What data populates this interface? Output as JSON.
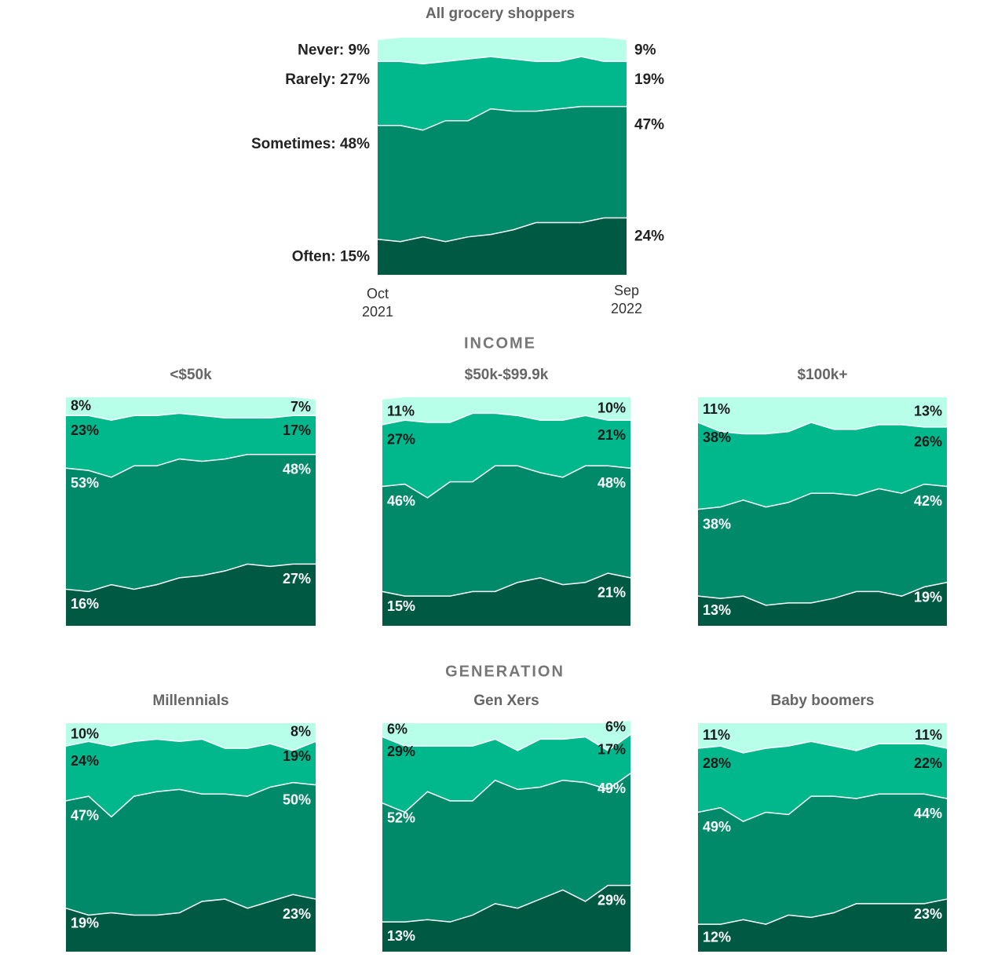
{
  "headings": [
    "INCOME",
    "GENERATION"
  ],
  "chart_data": [
    {
      "type": "area",
      "stacked": true,
      "title": "All grocery shoppers",
      "ylim": [
        0,
        100
      ],
      "categories": [
        "Oct 2021",
        null,
        null,
        null,
        null,
        null,
        null,
        null,
        null,
        null,
        null,
        "Sep 2022"
      ],
      "series": [
        {
          "name": "Often",
          "color": "#005a43",
          "values": [
            15,
            14,
            16,
            14,
            16,
            17,
            19,
            22,
            22,
            22,
            24,
            24
          ],
          "value_labels": [
            "Often: 15%",
            null,
            null,
            null,
            null,
            null,
            null,
            null,
            null,
            null,
            null,
            "24%"
          ]
        },
        {
          "name": "Sometimes",
          "color": "#008a69",
          "values": [
            48,
            49,
            45,
            51,
            49,
            53,
            50,
            47,
            48,
            49,
            47,
            47
          ],
          "value_labels": [
            "Sometimes: 48%",
            null,
            null,
            null,
            null,
            null,
            null,
            null,
            null,
            null,
            null,
            "47%"
          ]
        },
        {
          "name": "Rarely",
          "color": "#00b88c",
          "values": [
            27,
            27,
            28,
            25,
            26,
            22,
            22,
            21,
            20,
            21,
            19,
            19
          ],
          "value_labels": [
            "Rarely: 27%",
            null,
            null,
            null,
            null,
            null,
            null,
            null,
            null,
            null,
            null,
            "19%"
          ]
        },
        {
          "name": "Never",
          "color": "#b8ffe9",
          "values": [
            9,
            10,
            11,
            10,
            9,
            8,
            9,
            10,
            10,
            8,
            10,
            9
          ],
          "value_labels": [
            "Never: 9%",
            null,
            null,
            null,
            null,
            null,
            null,
            null,
            null,
            null,
            null,
            "9%"
          ]
        }
      ]
    },
    {
      "type": "area",
      "stacked": true,
      "title": "<$50k",
      "ylim": [
        0,
        100
      ],
      "series": [
        {
          "color": "#005a43",
          "values": [
            16,
            15,
            18,
            16,
            18,
            21,
            22,
            24,
            27,
            26,
            27,
            27
          ],
          "value_labels": [
            "16%",
            null,
            null,
            null,
            null,
            null,
            null,
            null,
            null,
            null,
            null,
            "27%"
          ]
        },
        {
          "color": "#008a69",
          "values": [
            53,
            53,
            47,
            54,
            52,
            52,
            50,
            49,
            48,
            49,
            48,
            48
          ],
          "value_labels": [
            "53%",
            null,
            null,
            null,
            null,
            null,
            null,
            null,
            null,
            null,
            null,
            "48%"
          ]
        },
        {
          "color": "#00b88c",
          "values": [
            23,
            24,
            25,
            22,
            22,
            20,
            20,
            18,
            16,
            16,
            17,
            17
          ],
          "value_labels": [
            "23%",
            null,
            null,
            null,
            null,
            null,
            null,
            null,
            null,
            null,
            null,
            "17%"
          ]
        },
        {
          "color": "#b8ffe9",
          "values": [
            8,
            8,
            10,
            8,
            8,
            7,
            8,
            9,
            9,
            9,
            8,
            7
          ],
          "value_labels": [
            "8%",
            null,
            null,
            null,
            null,
            null,
            null,
            null,
            null,
            null,
            null,
            "7%"
          ]
        }
      ]
    },
    {
      "type": "area",
      "stacked": true,
      "title": "$50k-$99.9k",
      "ylim": [
        0,
        100
      ],
      "series": [
        {
          "color": "#005a43",
          "values": [
            15,
            13,
            13,
            13,
            15,
            15,
            19,
            21,
            18,
            19,
            23,
            21
          ],
          "value_labels": [
            "15%",
            null,
            null,
            null,
            null,
            null,
            null,
            null,
            null,
            null,
            null,
            "21%"
          ]
        },
        {
          "color": "#008a69",
          "values": [
            46,
            49,
            43,
            50,
            48,
            55,
            51,
            46,
            47,
            51,
            47,
            48
          ],
          "value_labels": [
            "46%",
            null,
            null,
            null,
            null,
            null,
            null,
            null,
            null,
            null,
            null,
            "48%"
          ]
        },
        {
          "color": "#00b88c",
          "values": [
            27,
            28,
            33,
            26,
            30,
            23,
            22,
            23,
            25,
            22,
            20,
            21
          ],
          "value_labels": [
            "27%",
            null,
            null,
            null,
            null,
            null,
            null,
            null,
            null,
            null,
            null,
            "21%"
          ]
        },
        {
          "color": "#b8ffe9",
          "values": [
            11,
            10,
            11,
            11,
            7,
            7,
            8,
            10,
            10,
            8,
            10,
            10
          ],
          "value_labels": [
            "11%",
            null,
            null,
            null,
            null,
            null,
            null,
            null,
            null,
            null,
            null,
            "10%"
          ]
        }
      ]
    },
    {
      "type": "area",
      "stacked": true,
      "title": "$100k+",
      "ylim": [
        0,
        100
      ],
      "series": [
        {
          "color": "#005a43",
          "values": [
            13,
            12,
            13,
            9,
            10,
            10,
            12,
            15,
            15,
            13,
            17,
            19
          ],
          "value_labels": [
            "13%",
            null,
            null,
            null,
            null,
            null,
            null,
            null,
            null,
            null,
            null,
            "19%"
          ]
        },
        {
          "color": "#008a69",
          "values": [
            38,
            40,
            42,
            43,
            44,
            48,
            46,
            42,
            45,
            45,
            45,
            42
          ],
          "value_labels": [
            "38%",
            null,
            null,
            null,
            null,
            null,
            null,
            null,
            null,
            null,
            null,
            "42%"
          ]
        },
        {
          "color": "#00b88c",
          "values": [
            38,
            33,
            29,
            32,
            31,
            31,
            28,
            29,
            28,
            30,
            25,
            26
          ],
          "value_labels": [
            "38%",
            null,
            null,
            null,
            null,
            null,
            null,
            null,
            null,
            null,
            null,
            "26%"
          ]
        },
        {
          "color": "#b8ffe9",
          "values": [
            11,
            15,
            16,
            16,
            15,
            11,
            14,
            14,
            12,
            12,
            13,
            13
          ],
          "value_labels": [
            "11%",
            null,
            null,
            null,
            null,
            null,
            null,
            null,
            null,
            null,
            null,
            "13%"
          ]
        }
      ]
    },
    {
      "type": "area",
      "stacked": true,
      "title": "Millennials",
      "ylim": [
        0,
        100
      ],
      "series": [
        {
          "color": "#005a43",
          "values": [
            19,
            16,
            17,
            16,
            16,
            17,
            22,
            23,
            19,
            22,
            25,
            23
          ],
          "value_labels": [
            "19%",
            null,
            null,
            null,
            null,
            null,
            null,
            null,
            null,
            null,
            null,
            "23%"
          ]
        },
        {
          "color": "#008a69",
          "values": [
            47,
            52,
            42,
            52,
            54,
            54,
            47,
            46,
            49,
            50,
            49,
            50
          ],
          "value_labels": [
            "47%",
            null,
            null,
            null,
            null,
            null,
            null,
            null,
            null,
            null,
            null,
            "50%"
          ]
        },
        {
          "color": "#00b88c",
          "values": [
            24,
            24,
            31,
            24,
            23,
            21,
            24,
            20,
            21,
            19,
            14,
            19
          ],
          "value_labels": [
            "24%",
            null,
            null,
            null,
            null,
            null,
            null,
            null,
            null,
            null,
            null,
            "19%"
          ]
        },
        {
          "color": "#b8ffe9",
          "values": [
            10,
            8,
            10,
            8,
            7,
            8,
            7,
            11,
            11,
            9,
            12,
            8
          ],
          "value_labels": [
            "10%",
            null,
            null,
            null,
            null,
            null,
            null,
            null,
            null,
            null,
            null,
            "8%"
          ]
        }
      ]
    },
    {
      "type": "area",
      "stacked": true,
      "title": "Gen Xers",
      "ylim": [
        0,
        100
      ],
      "series": [
        {
          "color": "#005a43",
          "values": [
            13,
            13,
            14,
            13,
            16,
            21,
            19,
            23,
            27,
            22,
            29,
            29
          ],
          "value_labels": [
            "13%",
            null,
            null,
            null,
            null,
            null,
            null,
            null,
            null,
            null,
            null,
            "29%"
          ]
        },
        {
          "color": "#008a69",
          "values": [
            52,
            48,
            56,
            53,
            50,
            54,
            52,
            49,
            48,
            52,
            42,
            49
          ],
          "value_labels": [
            "52%",
            null,
            null,
            null,
            null,
            null,
            null,
            null,
            null,
            null,
            null,
            "49%"
          ]
        },
        {
          "color": "#00b88c",
          "values": [
            29,
            29,
            20,
            24,
            24,
            18,
            17,
            21,
            18,
            20,
            17,
            17
          ],
          "value_labels": [
            "29%",
            null,
            null,
            null,
            null,
            null,
            null,
            null,
            null,
            null,
            null,
            "17%"
          ]
        },
        {
          "color": "#b8ffe9",
          "values": [
            6,
            10,
            10,
            10,
            10,
            7,
            12,
            7,
            7,
            6,
            12,
            6
          ],
          "value_labels": [
            "6%",
            null,
            null,
            null,
            null,
            null,
            null,
            null,
            null,
            null,
            null,
            "6%"
          ]
        }
      ]
    },
    {
      "type": "area",
      "stacked": true,
      "title": "Baby boomers",
      "ylim": [
        0,
        100
      ],
      "series": [
        {
          "color": "#005a43",
          "values": [
            12,
            12,
            14,
            12,
            16,
            15,
            17,
            21,
            21,
            21,
            21,
            23
          ],
          "value_labels": [
            "12%",
            null,
            null,
            null,
            null,
            null,
            null,
            null,
            null,
            null,
            null,
            "23%"
          ]
        },
        {
          "color": "#008a69",
          "values": [
            49,
            51,
            43,
            49,
            44,
            53,
            51,
            46,
            48,
            48,
            48,
            44
          ],
          "value_labels": [
            "49%",
            null,
            null,
            null,
            null,
            null,
            null,
            null,
            null,
            null,
            null,
            "44%"
          ]
        },
        {
          "color": "#00b88c",
          "values": [
            28,
            27,
            30,
            28,
            30,
            24,
            22,
            21,
            22,
            22,
            22,
            22
          ],
          "value_labels": [
            "28%",
            null,
            null,
            null,
            null,
            null,
            null,
            null,
            null,
            null,
            null,
            "22%"
          ]
        },
        {
          "color": "#b8ffe9",
          "values": [
            11,
            10,
            13,
            11,
            10,
            8,
            10,
            12,
            9,
            9,
            9,
            11
          ],
          "value_labels": [
            "11%",
            null,
            null,
            null,
            null,
            null,
            null,
            null,
            null,
            null,
            null,
            "11%"
          ]
        }
      ]
    }
  ]
}
